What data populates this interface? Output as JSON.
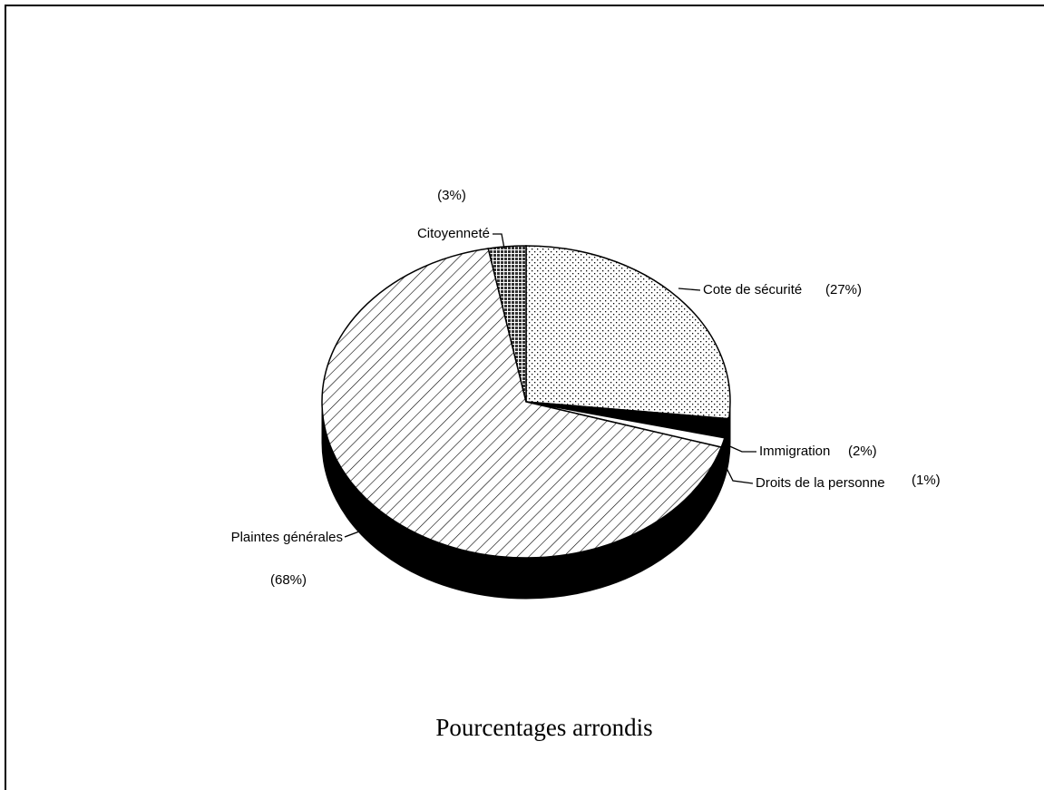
{
  "chart_data": {
    "type": "pie3d",
    "title": "Pourcentages arrondis",
    "categories": [
      "Cote de sécurité",
      "Immigration",
      "Droits de la personne",
      "Plaintes générales",
      "Citoyenneté"
    ],
    "values": [
      27,
      2,
      1,
      68,
      3
    ],
    "value_labels": [
      "(27%)",
      "(2%)",
      "(1%)",
      "(68%)",
      "(3%)"
    ],
    "colors": [
      "#000000",
      "#000000",
      "#ffffff",
      "#000000",
      "#444444"
    ],
    "patterns": [
      "dots",
      "solid",
      "solid",
      "hatch",
      "cross"
    ]
  }
}
